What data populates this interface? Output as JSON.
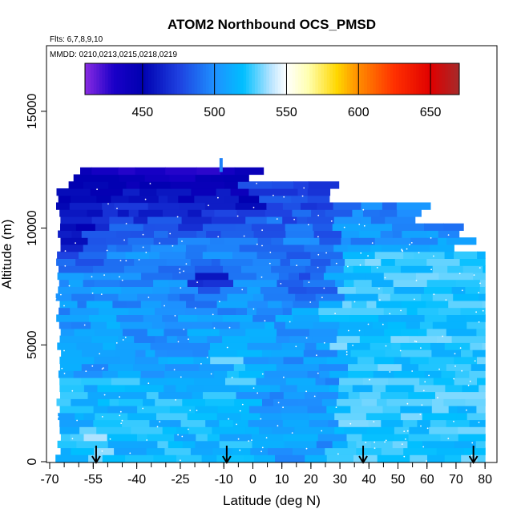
{
  "chart_data": {
    "type": "heatmap",
    "title": "ATOM2 Northbound OCS_PMSD",
    "flights_label": "Flts: 6,7,8,9,10",
    "dates_label": "MMDD: 0210,0213,0215,0218,0219",
    "xlabel": "Latitude (deg N)",
    "ylabel": "Altitude (m)",
    "xlim": [
      -70,
      83
    ],
    "ylim": [
      0,
      17500
    ],
    "x_tick_values": [
      -70,
      -55,
      -40,
      -25,
      -10,
      0,
      10,
      20,
      30,
      40,
      50,
      60,
      70,
      80
    ],
    "x_tick_labels": [
      "-70",
      "-55",
      "-40",
      "-25",
      "-10",
      "0",
      "10",
      "20",
      "30",
      "40",
      "50",
      "60",
      "70",
      "80"
    ],
    "y_tick_values": [
      0,
      5000,
      10000,
      15000
    ],
    "y_tick_labels": [
      "0",
      "5000",
      "10000",
      "15000"
    ],
    "colorbar": {
      "min": 410,
      "max": 670,
      "tick_values": [
        450,
        500,
        550,
        600,
        650
      ],
      "tick_labels": [
        "450",
        "500",
        "550",
        "600",
        "650"
      ],
      "stops": [
        {
          "value": 410,
          "color": "#8a2be2"
        },
        {
          "value": 430,
          "color": "#1a00c8"
        },
        {
          "value": 450,
          "color": "#0000b0"
        },
        {
          "value": 475,
          "color": "#1e40e0"
        },
        {
          "value": 500,
          "color": "#1e90ff"
        },
        {
          "value": 520,
          "color": "#00bfff"
        },
        {
          "value": 540,
          "color": "#bfe6ff"
        },
        {
          "value": 550,
          "color": "#ffffff"
        },
        {
          "value": 565,
          "color": "#ffffb0"
        },
        {
          "value": 585,
          "color": "#ffd700"
        },
        {
          "value": 600,
          "color": "#ff8c00"
        },
        {
          "value": 625,
          "color": "#ff3000"
        },
        {
          "value": 650,
          "color": "#e00000"
        },
        {
          "value": 670,
          "color": "#a52a2a"
        }
      ]
    },
    "arrow_latitudes": [
      -54,
      -9,
      38,
      76
    ],
    "grid": false
  }
}
